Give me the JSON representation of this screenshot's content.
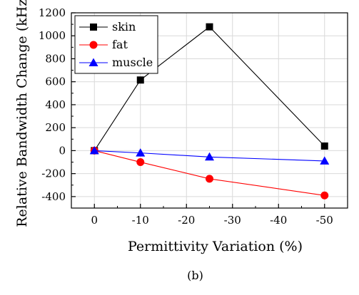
{
  "chart_data": {
    "type": "line",
    "caption": "(b)",
    "xlabel": "Permittivity Variation (%)",
    "ylabel": "Relative Bandwidth Change (kHz)",
    "x": [
      0,
      -10,
      -25,
      -50
    ],
    "x_ticks": [
      0,
      -10,
      -20,
      -30,
      -40,
      -50
    ],
    "xlim": [
      5,
      -55
    ],
    "y_ticks": [
      -400,
      -200,
      0,
      200,
      400,
      600,
      800,
      1000,
      1200
    ],
    "ylim": [
      -500,
      1200
    ],
    "grid": true,
    "legend_position": "top-left",
    "series": [
      {
        "name": "skin",
        "color": "#000000",
        "marker": "square",
        "values": [
          0,
          615,
          1078,
          40
        ]
      },
      {
        "name": "fat",
        "color": "#ff0000",
        "marker": "circle",
        "values": [
          0,
          -100,
          -245,
          -390
        ]
      },
      {
        "name": "muscle",
        "color": "#0000ff",
        "marker": "triangle",
        "values": [
          0,
          -20,
          -55,
          -90
        ]
      }
    ]
  }
}
